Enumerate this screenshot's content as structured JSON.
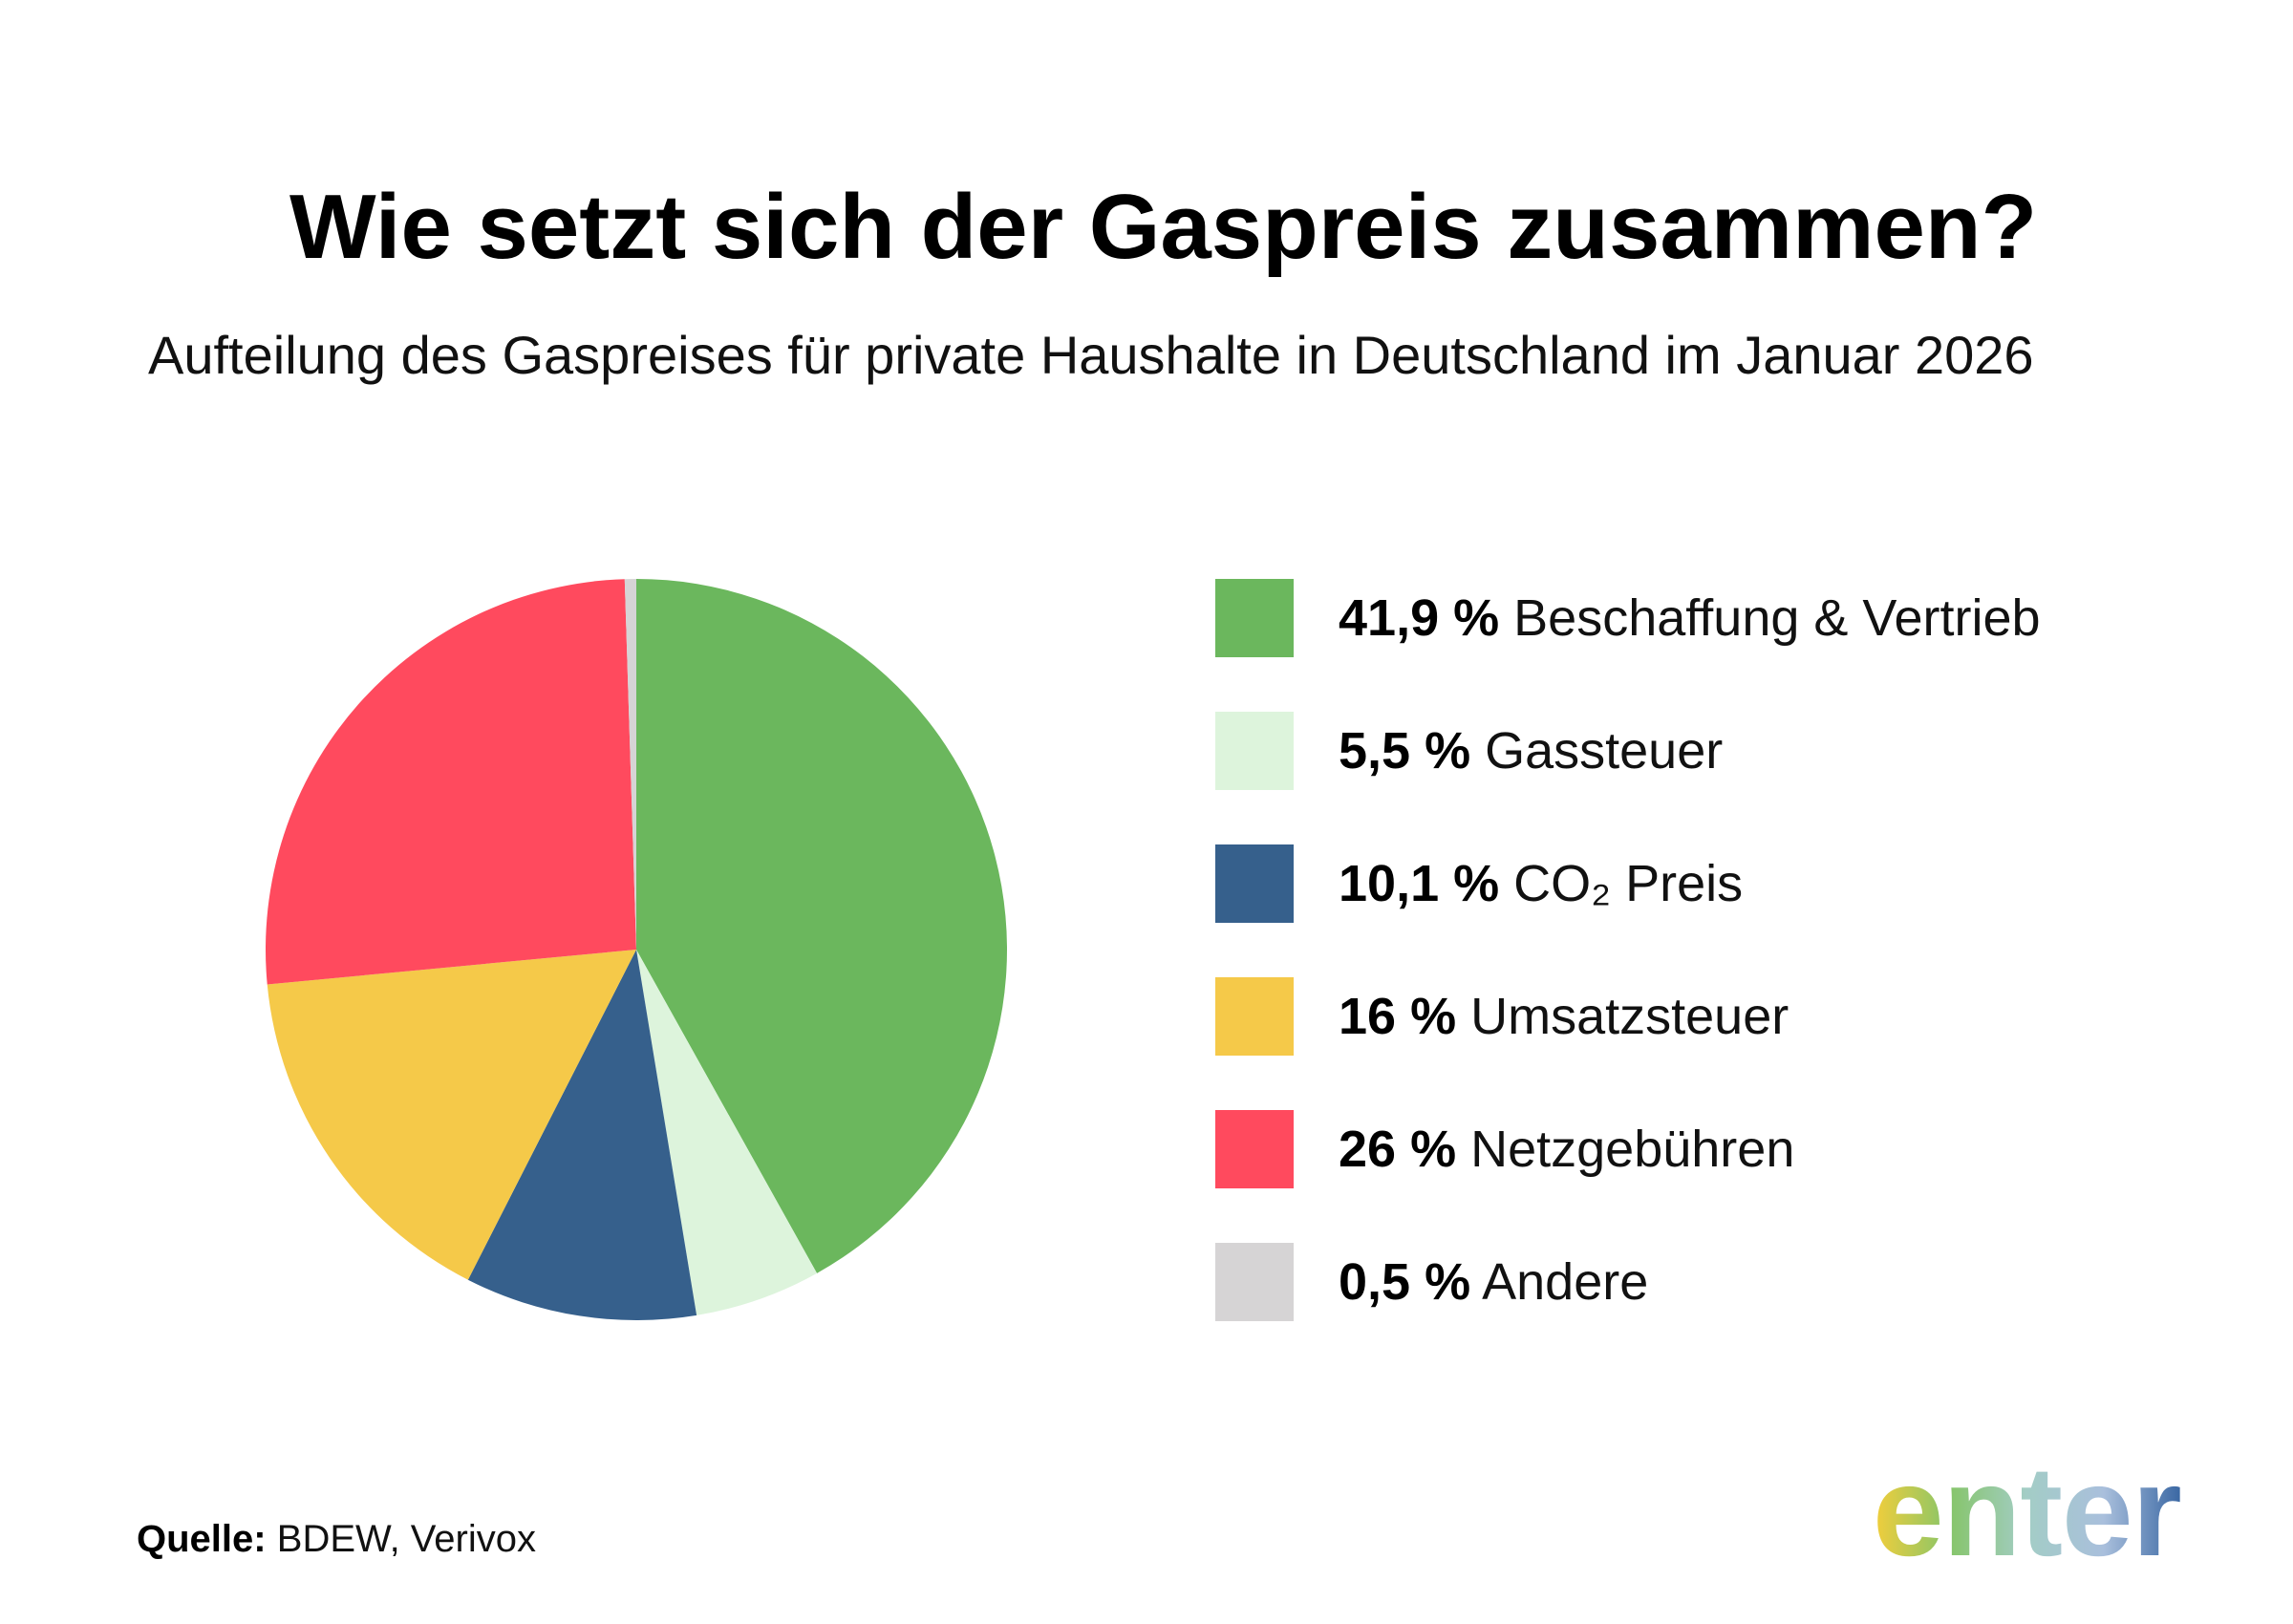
{
  "chart_data": {
    "type": "pie",
    "title": "Wie setzt sich der Gaspreis zusammen?",
    "subtitle": "Aufteilung des Gaspreises für private Haushalte in Deutschland im Januar 2026",
    "categories": [
      "Beschaffung & Vertrieb",
      "Gassteuer",
      "CO₂ Preis",
      "Umsatzsteuer",
      "Netzgebühren",
      "Andere"
    ],
    "values": [
      41.9,
      5.5,
      10.1,
      16,
      26,
      0.5
    ],
    "value_labels": [
      "41,9 %",
      "5,5 %",
      "10,1 %",
      "16 %",
      "26 %",
      "0,5 %"
    ],
    "colors": [
      "#6BB75D",
      "#DDF4DC",
      "#36608C",
      "#F5C949",
      "#FF4A5E",
      "#D6D4D5"
    ],
    "legend": "right"
  },
  "source": {
    "label": "Quelle:",
    "text": "BDEW, Verivox"
  },
  "logo": {
    "text": "enter",
    "gradient": [
      "#F4CE3A",
      "#86C56A",
      "#A3CDC6",
      "#A9BFDC",
      "#3A67A3"
    ]
  }
}
